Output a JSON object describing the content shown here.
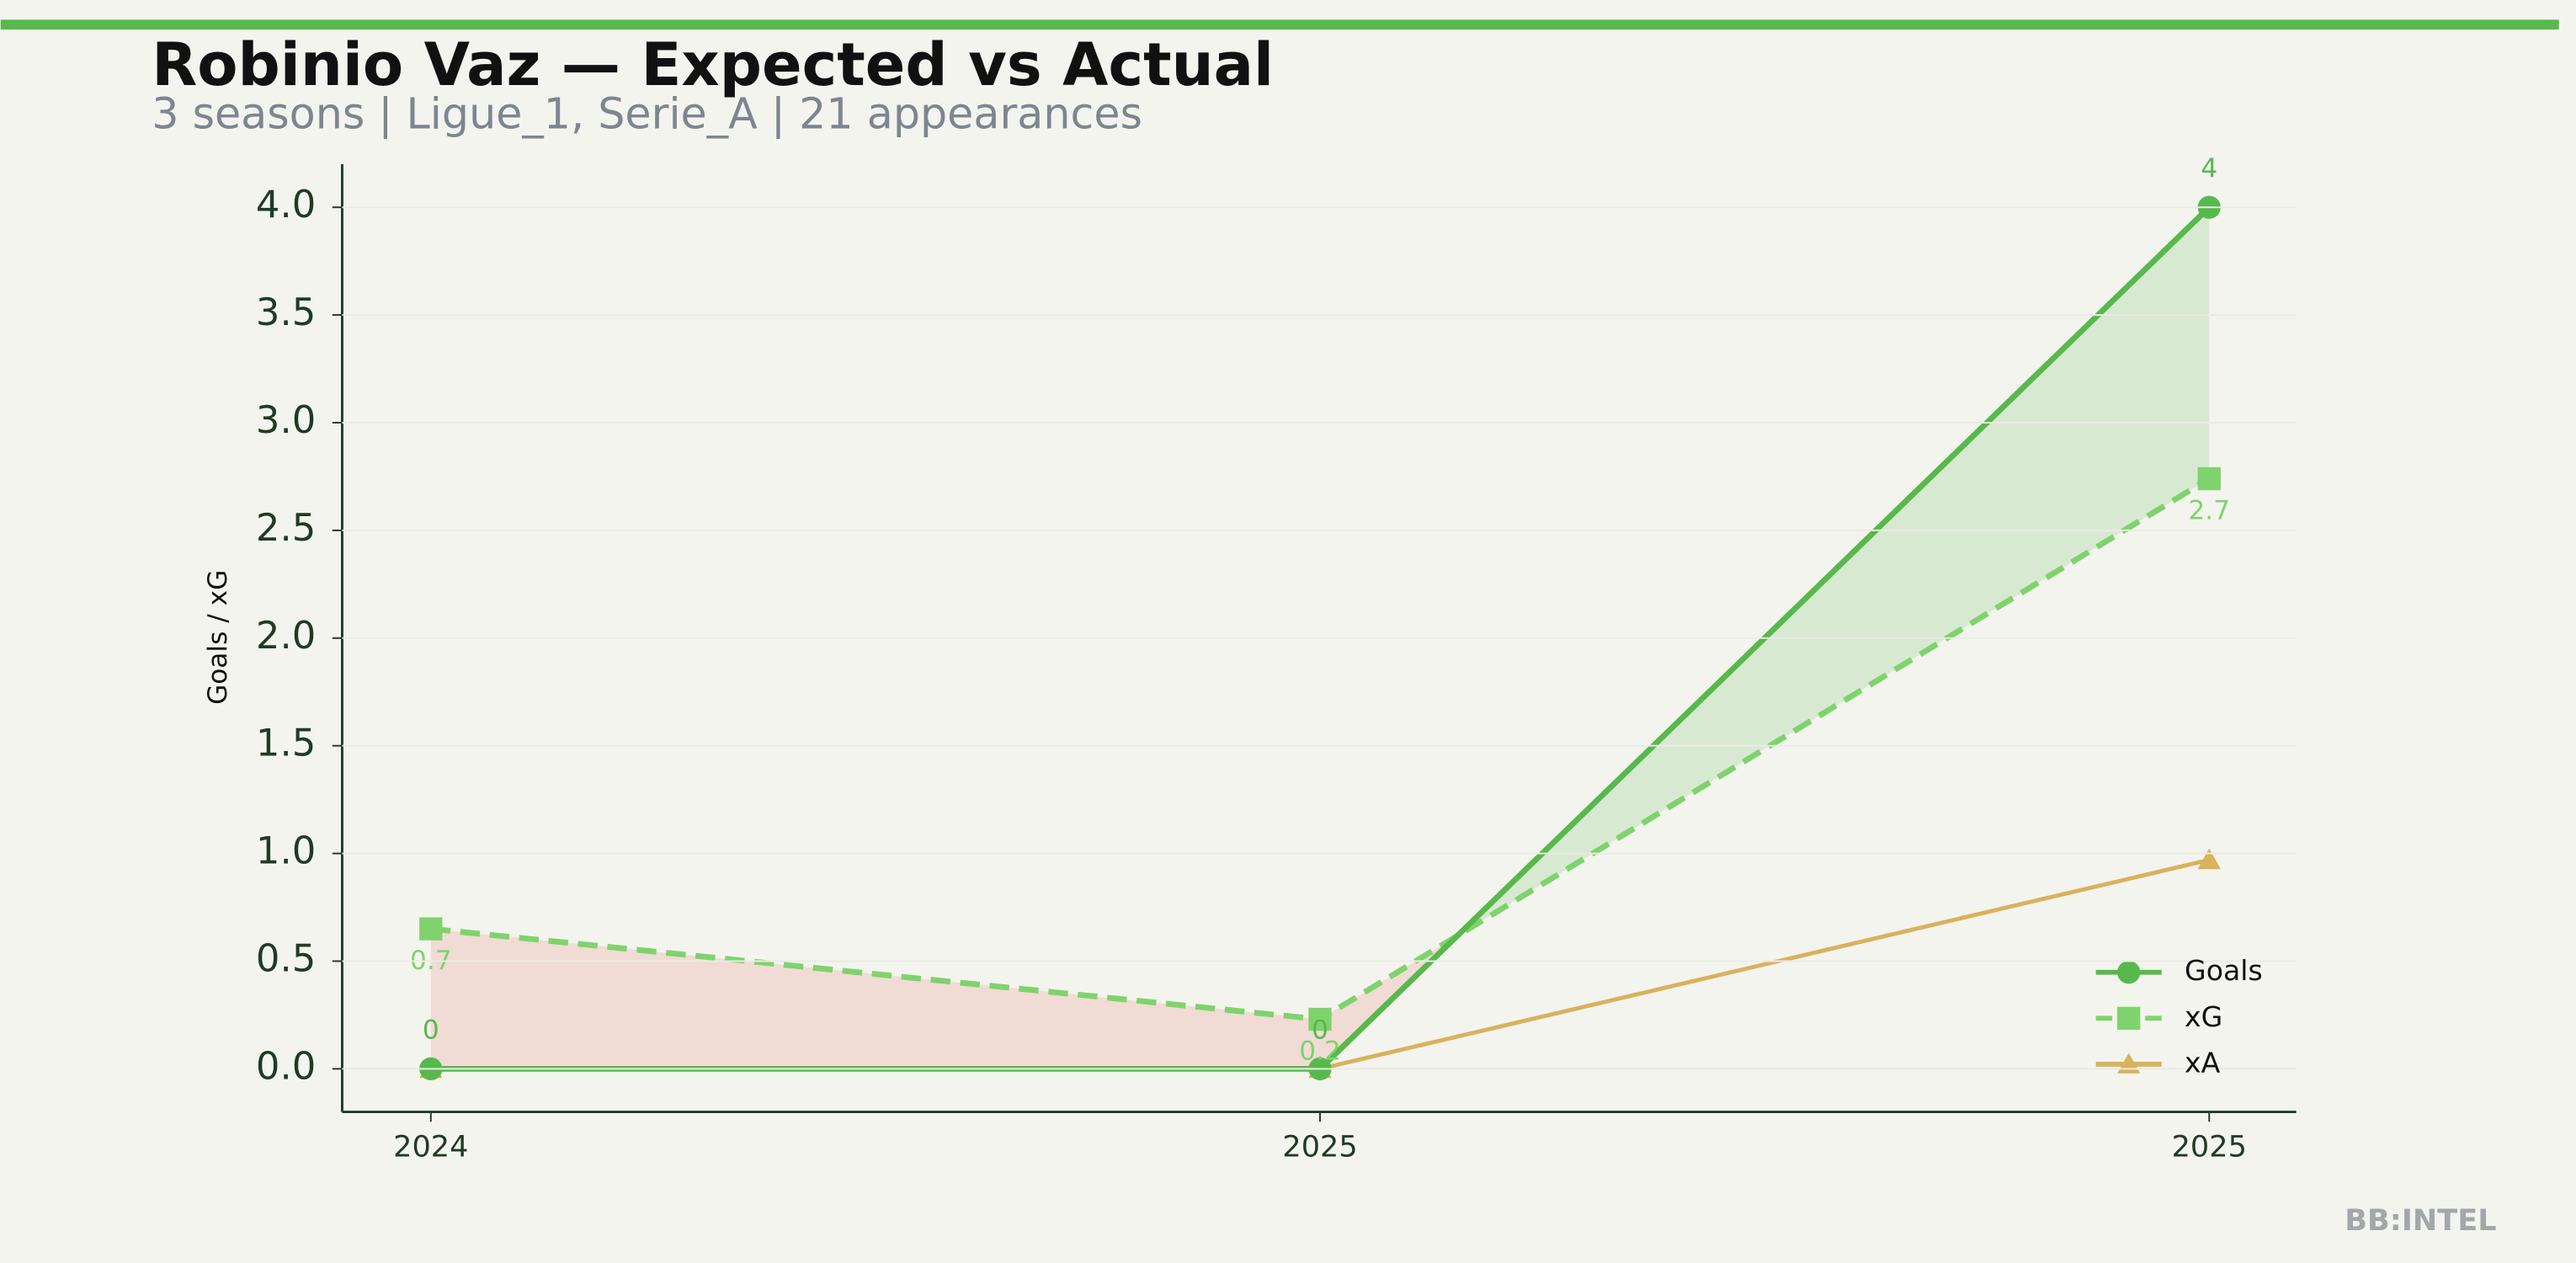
{
  "chart_data": {
    "type": "line",
    "title": "Robinio Vaz — Expected vs Actual",
    "subtitle": "3 seasons | Ligue_1, Serie_A | 21 appearances",
    "y_label": "Goals / xG",
    "watermark": "BB:INTEL",
    "categories": [
      "2024",
      "2025",
      "2025"
    ],
    "series": [
      {
        "name": "Goals",
        "color": "#57b94b",
        "marker": "circle",
        "dash": false,
        "values": [
          0,
          0,
          4
        ]
      },
      {
        "name": "xG",
        "color": "#7fd36c",
        "marker": "square",
        "dash": true,
        "values": [
          0.65,
          0.23,
          2.74
        ],
        "value_labels": [
          "0.7",
          "0.2",
          "2.7"
        ]
      },
      {
        "name": "xA",
        "color": "#d9b25c",
        "marker": "triangle",
        "dash": false,
        "values": [
          0,
          0,
          0.97
        ]
      }
    ],
    "ylim": [
      -0.2,
      4.2
    ],
    "yticks": [
      {
        "value": 0,
        "label": "0.0"
      },
      0.5,
      {
        "value": 1,
        "label": "1.0"
      },
      1.5,
      {
        "value": 2,
        "label": "2.0"
      },
      2.5,
      {
        "value": 3,
        "label": "3.0"
      },
      3.5,
      {
        "value": 4,
        "label": "4.0"
      }
    ],
    "grid": true,
    "legend": "lower right"
  }
}
